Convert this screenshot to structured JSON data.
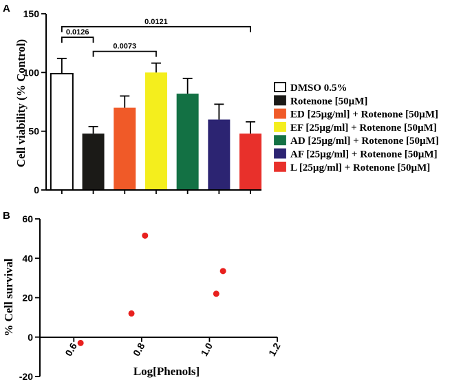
{
  "chart_data": [
    {
      "panel": "A",
      "type": "bar",
      "ylabel": "Cell viability (% Control)",
      "ylim": [
        0,
        150
      ],
      "yticks": [
        0,
        50,
        100,
        150
      ],
      "series": [
        {
          "name": "DMSO 0.5%",
          "value": 99,
          "error": 13,
          "color": "#ffffff"
        },
        {
          "name": "Rotenone [50µM]",
          "value": 48,
          "error": 6,
          "color": "#1b1a17"
        },
        {
          "name": "ED [25µg/ml] + Rotenone [50µM]",
          "value": 70,
          "error": 10,
          "color": "#f05a28"
        },
        {
          "name": "EF [25µg/ml] + Rotenone [50µM]",
          "value": 100,
          "error": 8,
          "color": "#f4ee1d"
        },
        {
          "name": "AD [25µg/ml] + Rotenone [50µM]",
          "value": 82,
          "error": 13,
          "color": "#137144"
        },
        {
          "name": "AF [25µg/ml] + Rotenone [50µM]",
          "value": 60,
          "error": 13,
          "color": "#2c2472"
        },
        {
          "name": "L [25µg/ml] + Rotenone [50µM]",
          "value": 48,
          "error": 10,
          "color": "#e8302b"
        }
      ],
      "comparisons": [
        {
          "from": 0,
          "to": 1,
          "label": "0.0126",
          "level": 130
        },
        {
          "from": 1,
          "to": 3,
          "label": "0.0073",
          "level": 118
        },
        {
          "from": 0,
          "to": 6,
          "label": "0.0121",
          "level": 139
        }
      ]
    },
    {
      "panel": "B",
      "type": "scatter",
      "xlabel": "Log[Phenols]",
      "ylabel": "% Cell survival",
      "xlim": [
        0.5,
        1.2
      ],
      "ylim": [
        -20,
        60
      ],
      "xticks": [
        "0.6",
        "0.8",
        "1.0",
        "1.2"
      ],
      "yticks": [
        "-20",
        "0",
        "20",
        "40",
        "60"
      ],
      "point_color": "#e8201e",
      "points": [
        {
          "x": 0.62,
          "y": -3
        },
        {
          "x": 0.77,
          "y": 12
        },
        {
          "x": 0.81,
          "y": 51.5
        },
        {
          "x": 1.02,
          "y": 22
        },
        {
          "x": 1.04,
          "y": 33.5
        }
      ]
    }
  ]
}
